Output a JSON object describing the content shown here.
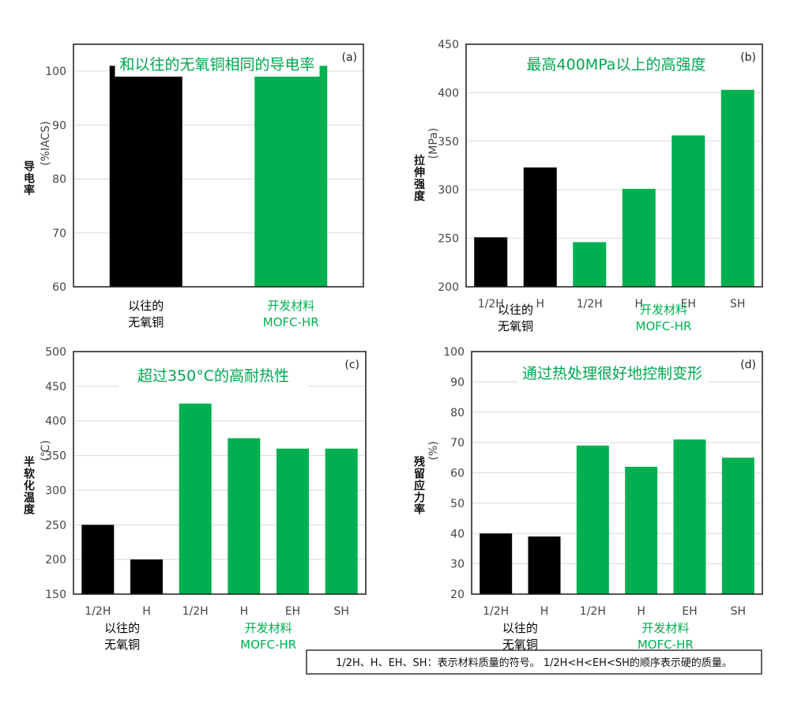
{
  "colors": {
    "conventional": "#000000",
    "developed": "#00b050",
    "title": "#00a650",
    "grid": "#d9d9d9",
    "axis": "#1a1a1a"
  },
  "chart_data": [
    {
      "type": "bar",
      "panel_label": "(a)",
      "title": "和以往的无氧铜相同的导电率",
      "ylabel_unit": "(%IACS)",
      "ylabel_name": "导电率",
      "ylim": [
        60,
        105
      ],
      "yticks": [
        60,
        70,
        80,
        90,
        100
      ],
      "grid": true,
      "categories": [
        "",
        ""
      ],
      "values": [
        101,
        101
      ],
      "groups": [
        {
          "lines": [
            "以往的",
            "无氧铜"
          ],
          "color": "#000000",
          "bar_indices": [
            0
          ]
        },
        {
          "lines": [
            "开发材料",
            "MOFC-HR"
          ],
          "color": "#00b050",
          "bar_indices": [
            1
          ]
        }
      ]
    },
    {
      "type": "bar",
      "panel_label": "(b)",
      "title": "最高400MPa以上的高强度",
      "ylabel_unit": "(MPa)",
      "ylabel_name": "拉伸强度",
      "ylim": [
        200,
        450
      ],
      "yticks": [
        200,
        250,
        300,
        350,
        400,
        450
      ],
      "grid": true,
      "categories": [
        "1/2H",
        "H",
        "1/2H",
        "H",
        "EH",
        "SH"
      ],
      "values": [
        251,
        323,
        246,
        301,
        356,
        403
      ],
      "groups": [
        {
          "lines": [
            "以往的",
            "无氧铜"
          ],
          "color": "#000000",
          "bar_indices": [
            0,
            1
          ]
        },
        {
          "lines": [
            "开发材料",
            "MOFC-HR"
          ],
          "color": "#00b050",
          "bar_indices": [
            2,
            3,
            4,
            5
          ]
        }
      ]
    },
    {
      "type": "bar",
      "panel_label": "(c)",
      "title": "超过350°C的高耐热性",
      "ylabel_unit": "(℃)",
      "ylabel_name": "半软化温度",
      "ylim": [
        150,
        500
      ],
      "yticks": [
        150,
        200,
        250,
        300,
        350,
        400,
        450,
        500
      ],
      "grid": true,
      "categories": [
        "1/2H",
        "H",
        "1/2H",
        "H",
        "EH",
        "SH"
      ],
      "values": [
        250,
        200,
        425,
        375,
        360,
        360
      ],
      "groups": [
        {
          "lines": [
            "以往的",
            "无氧铜"
          ],
          "color": "#000000",
          "bar_indices": [
            0,
            1
          ]
        },
        {
          "lines": [
            "开发材料",
            "MOFC-HR"
          ],
          "color": "#00b050",
          "bar_indices": [
            2,
            3,
            4,
            5
          ]
        }
      ]
    },
    {
      "type": "bar",
      "panel_label": "(d)",
      "title": "通过热处理很好地控制变形",
      "ylabel_unit": "(%)",
      "ylabel_name": "残留应力率",
      "ylim": [
        20,
        100
      ],
      "yticks": [
        20,
        30,
        40,
        50,
        60,
        70,
        80,
        90,
        100
      ],
      "grid": true,
      "categories": [
        "1/2H",
        "H",
        "1/2H",
        "H",
        "EH",
        "SH"
      ],
      "values": [
        40,
        39,
        69,
        62,
        71,
        65
      ],
      "groups": [
        {
          "lines": [
            "以往的",
            "无氧铜"
          ],
          "color": "#000000",
          "bar_indices": [
            0,
            1
          ]
        },
        {
          "lines": [
            "开发材料",
            "MOFC-HR"
          ],
          "color": "#00b050",
          "bar_indices": [
            2,
            3,
            4,
            5
          ]
        }
      ]
    }
  ],
  "footnote": "1/2H、H、EH、SH：表示材料质量的符号。 1/2H<H<EH<SH的顺序表示硬的质量。"
}
